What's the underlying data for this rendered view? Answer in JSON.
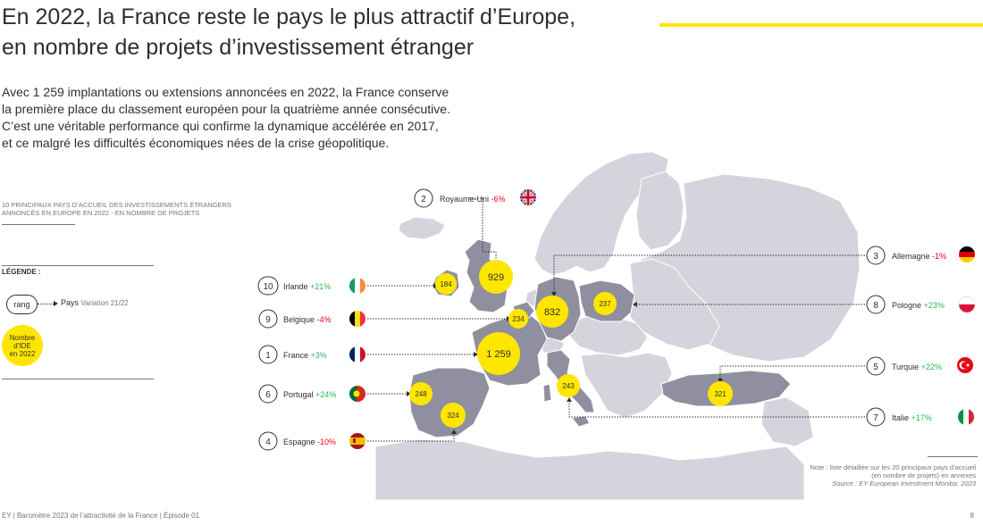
{
  "title_line1": "En 2022, la France reste le pays le plus attractif d’Europe,",
  "title_line2": "en nombre de projets d’investissement étranger",
  "intro_lines": [
    "Avec 1 259 implantations ou extensions annoncées en 2022, la France conserve",
    "la première place du classement européen pour la quatrième année consécutive.",
    "C’est une véritable performance qui confirme la dynamique accélérée en 2017,",
    "et ce malgré les difficultés économiques nées de la crise géopolitique."
  ],
  "chart_heading_lines": [
    "10 principaux pays d’accueil des investissements étrangers",
    "annoncés en Europe en 2022 - en nombre de projets"
  ],
  "legend": {
    "title": "LÉGENDE :",
    "rank": "rang",
    "country": "Pays",
    "variation": "Variation 21/22",
    "circle_lines": [
      "Nombre",
      "d’IDE",
      "en 2022"
    ]
  },
  "colors": {
    "accent": "#ffe600",
    "positive": "#2db757",
    "negative": "#ea011d",
    "highlight_country": "#8f8fa0",
    "other_country": "#d4d4dc"
  },
  "countries": [
    {
      "rank": "1",
      "name": "France",
      "variation": "+3%",
      "trend": "positive",
      "projects": "1 259",
      "flag": "france-flag"
    },
    {
      "rank": "2",
      "name": "Royaume-Uni",
      "variation": "-6%",
      "trend": "negative",
      "projects": "929",
      "flag": "uk-flag"
    },
    {
      "rank": "3",
      "name": "Allemagne",
      "variation": "-1%",
      "trend": "negative",
      "projects": "832",
      "flag": "germany-flag"
    },
    {
      "rank": "4",
      "name": "Espagne",
      "variation": "-10%",
      "trend": "negative",
      "projects": "324",
      "flag": "spain-flag"
    },
    {
      "rank": "5",
      "name": "Turquie",
      "variation": "+22%",
      "trend": "positive",
      "projects": "321",
      "flag": "turkey-flag"
    },
    {
      "rank": "6",
      "name": "Portugal",
      "variation": "+24%",
      "trend": "positive",
      "projects": "248",
      "flag": "portugal-flag"
    },
    {
      "rank": "7",
      "name": "Italie",
      "variation": "+17%",
      "trend": "positive",
      "projects": "243",
      "flag": "italy-flag"
    },
    {
      "rank": "8",
      "name": "Pologne",
      "variation": "+23%",
      "trend": "positive",
      "projects": "237",
      "flag": "poland-flag"
    },
    {
      "rank": "9",
      "name": "Belgique",
      "variation": "-4%",
      "trend": "negative",
      "projects": "234",
      "flag": "belgium-flag"
    },
    {
      "rank": "10",
      "name": "Irlande",
      "variation": "+21%",
      "trend": "positive",
      "projects": "184",
      "flag": "ireland-flag"
    }
  ],
  "note_lines": [
    "Note : liste détaillée sur les 20 principaux pays d’accueil",
    "(en nombre de projets) en annexes"
  ],
  "source": "Source : EY European Investment Monitor, 2023",
  "footer_left": "EY | Baromètre 2023 de l’attractivité de la France | Épisode 01",
  "footer_right": "8"
}
